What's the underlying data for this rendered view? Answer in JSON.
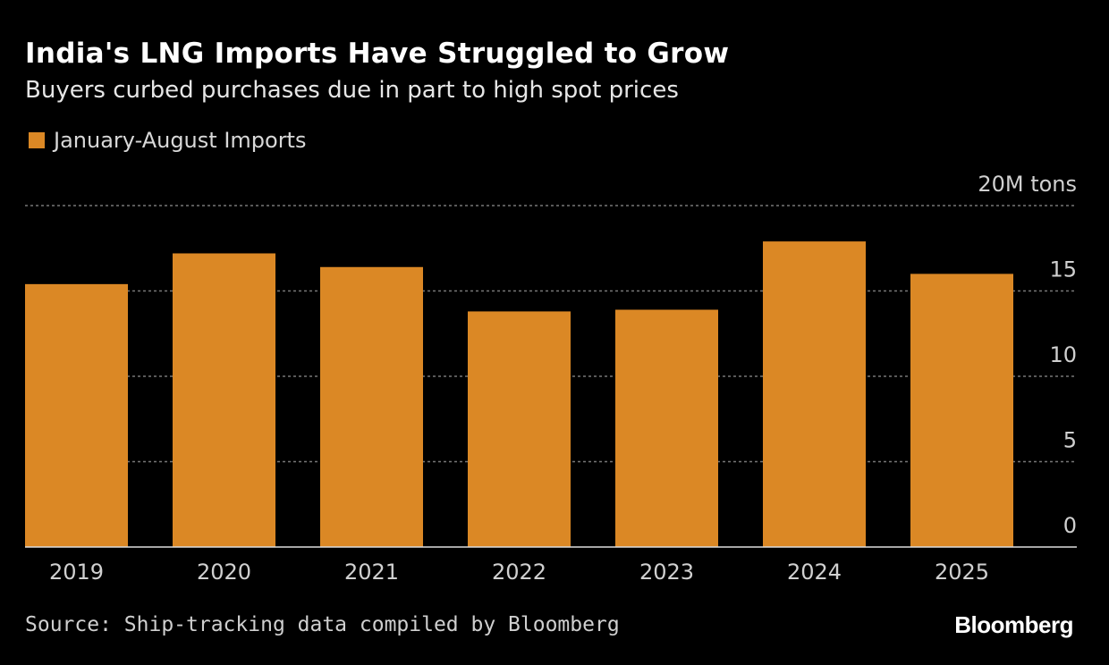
{
  "title": "India's LNG Imports Have Struggled to Grow",
  "subtitle": "Buyers curbed purchases due in part to high spot prices",
  "source": "Source: Ship-tracking data compiled by Bloomberg",
  "logo": "Bloomberg",
  "colors": {
    "bar": "#db8825",
    "background": "#000000",
    "grid": "#777777"
  },
  "chart_data": {
    "type": "bar",
    "title": "India's LNG Imports Have Struggled to Grow",
    "subtitle": "Buyers curbed purchases due in part to high spot prices",
    "categories": [
      "2019",
      "2020",
      "2021",
      "2022",
      "2023",
      "2024",
      "2025"
    ],
    "series": [
      {
        "name": "January-August Imports",
        "values": [
          15.4,
          17.2,
          16.4,
          13.8,
          13.9,
          17.9,
          16.0
        ]
      }
    ],
    "ylim": [
      0,
      20
    ],
    "yticks": [
      0,
      5,
      10,
      15,
      20
    ],
    "ytick_labels": [
      "0",
      "5",
      "10",
      "15",
      "20M tons"
    ],
    "yaxis_position": "right",
    "grid": true,
    "legend": "top-left"
  }
}
